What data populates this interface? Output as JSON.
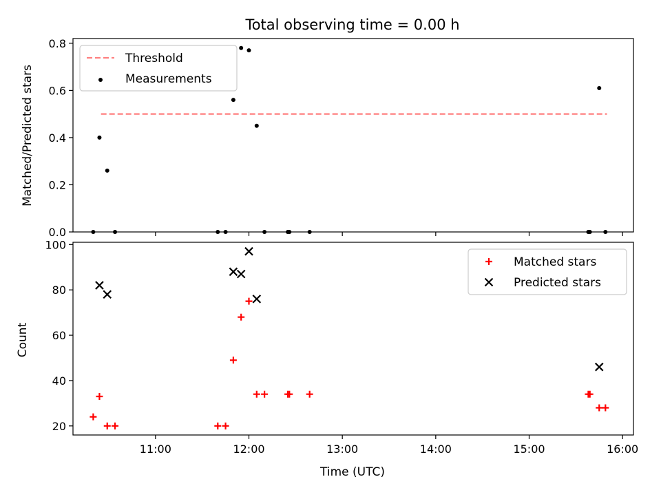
{
  "chart_data": [
    {
      "type": "scatter",
      "title": "Total observing time = 0.00 h",
      "xlabel": "",
      "ylabel": "Matched/Predicted stars",
      "ylim": [
        0,
        0.82
      ],
      "yticks": [
        0.0,
        0.2,
        0.4,
        0.6,
        0.8
      ],
      "ytick_labels": [
        "0.0",
        "0.2",
        "0.4",
        "0.6",
        "0.8"
      ],
      "x_time_range": [
        "10:07",
        "16:07"
      ],
      "legend_position": "upper-left",
      "series": [
        {
          "name": "Threshold",
          "kind": "line",
          "style": "dashed",
          "color": "#ff7f7f",
          "x": [
            "10:25",
            "15:50"
          ],
          "y": [
            0.5,
            0.5
          ]
        },
        {
          "name": "Measurements",
          "kind": "scatter",
          "marker": "dot",
          "color": "#000000",
          "x": [
            "10:20",
            "10:24",
            "10:29",
            "10:34",
            "11:40",
            "11:45",
            "11:50",
            "11:55",
            "12:00",
            "12:05",
            "12:10",
            "12:25",
            "12:26",
            "12:39",
            "15:38",
            "15:39",
            "15:45",
            "15:49"
          ],
          "y": [
            0.0,
            0.4,
            0.26,
            0.0,
            0.0,
            0.0,
            0.56,
            0.78,
            0.77,
            0.45,
            0.0,
            0.0,
            0.0,
            0.0,
            0.0,
            0.0,
            0.61,
            0.0
          ]
        }
      ]
    },
    {
      "type": "scatter",
      "title": "",
      "xlabel": "Time (UTC)",
      "ylabel": "Count",
      "ylim": [
        16,
        101
      ],
      "yticks": [
        20,
        40,
        60,
        80,
        100
      ],
      "ytick_labels": [
        "20",
        "40",
        "60",
        "80",
        "100"
      ],
      "x_time_range": [
        "10:07",
        "16:07"
      ],
      "xticks": [
        "11:00",
        "12:00",
        "13:00",
        "14:00",
        "15:00",
        "16:00"
      ],
      "legend_position": "upper-right",
      "series": [
        {
          "name": "Matched stars",
          "kind": "scatter",
          "marker": "plus",
          "color": "#ff0000",
          "x": [
            "10:20",
            "10:24",
            "10:29",
            "10:34",
            "11:40",
            "11:45",
            "11:50",
            "11:55",
            "12:00",
            "12:05",
            "12:10",
            "12:25",
            "12:26",
            "12:39",
            "15:38",
            "15:39",
            "15:45",
            "15:49"
          ],
          "y": [
            24,
            33,
            20,
            20,
            20,
            20,
            49,
            68,
            75,
            34,
            34,
            34,
            34,
            34,
            34,
            34,
            28,
            28
          ]
        },
        {
          "name": "Predicted stars",
          "kind": "scatter",
          "marker": "x",
          "color": "#000000",
          "x": [
            "10:24",
            "10:29",
            "11:50",
            "11:55",
            "12:00",
            "12:05",
            "15:45"
          ],
          "y": [
            82,
            78,
            88,
            87,
            97,
            76,
            46
          ]
        }
      ]
    }
  ]
}
